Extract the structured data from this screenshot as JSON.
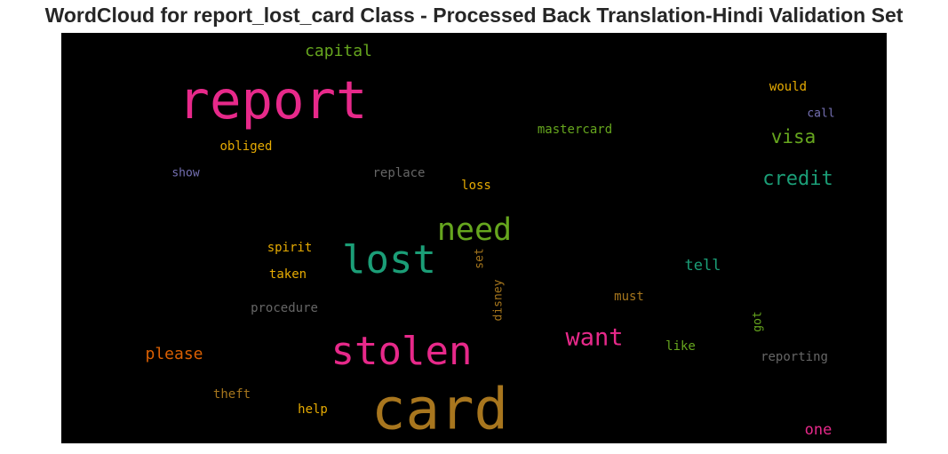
{
  "title": "WordCloud for report_lost_card Class - Processed Back Translation-Hindi Validation Set",
  "chart_data": {
    "type": "wordcloud",
    "background": "#000000",
    "words": [
      {
        "text": "card",
        "weight": 100,
        "color": "#a8761e",
        "rotate": false
      },
      {
        "text": "report",
        "weight": 92,
        "color": "#e7298a",
        "rotate": false
      },
      {
        "text": "lost",
        "weight": 68,
        "color": "#1b9e77",
        "rotate": false
      },
      {
        "text": "stolen",
        "weight": 68,
        "color": "#e7298a",
        "rotate": false
      },
      {
        "text": "need",
        "weight": 54,
        "color": "#66a61e",
        "rotate": false
      },
      {
        "text": "want",
        "weight": 42,
        "color": "#e7298a",
        "rotate": false
      },
      {
        "text": "credit",
        "weight": 35,
        "color": "#1b9e77",
        "rotate": false
      },
      {
        "text": "visa",
        "weight": 33,
        "color": "#66a61e",
        "rotate": false
      },
      {
        "text": "capital",
        "weight": 28,
        "color": "#66a61e",
        "rotate": false
      },
      {
        "text": "please",
        "weight": 28,
        "color": "#d95f02",
        "rotate": false
      },
      {
        "text": "tell",
        "weight": 27,
        "color": "#1b9e77",
        "rotate": false
      },
      {
        "text": "one",
        "weight": 26,
        "color": "#e7298a",
        "rotate": false
      },
      {
        "text": "would",
        "weight": 22,
        "color": "#e6ab02",
        "rotate": false
      },
      {
        "text": "mastercard",
        "weight": 22,
        "color": "#66a61e",
        "rotate": false
      },
      {
        "text": "call",
        "weight": 21,
        "color": "#7570b3",
        "rotate": false
      },
      {
        "text": "obliged",
        "weight": 22,
        "color": "#e6ab02",
        "rotate": false
      },
      {
        "text": "show",
        "weight": 21,
        "color": "#7570b3",
        "rotate": false
      },
      {
        "text": "replace",
        "weight": 22,
        "color": "#666666",
        "rotate": false
      },
      {
        "text": "loss",
        "weight": 22,
        "color": "#e6ab02",
        "rotate": false
      },
      {
        "text": "spirit",
        "weight": 22,
        "color": "#e6ab02",
        "rotate": false
      },
      {
        "text": "taken",
        "weight": 22,
        "color": "#e6ab02",
        "rotate": false
      },
      {
        "text": "procedure",
        "weight": 22,
        "color": "#666666",
        "rotate": false
      },
      {
        "text": "must",
        "weight": 22,
        "color": "#a6761d",
        "rotate": false
      },
      {
        "text": "like",
        "weight": 22,
        "color": "#66a61e",
        "rotate": false
      },
      {
        "text": "reporting",
        "weight": 22,
        "color": "#666666",
        "rotate": false
      },
      {
        "text": "theft",
        "weight": 22,
        "color": "#a6761d",
        "rotate": false
      },
      {
        "text": "help",
        "weight": 22,
        "color": "#e6ab02",
        "rotate": false
      },
      {
        "text": "set",
        "weight": 20,
        "color": "#a6761d",
        "rotate": true
      },
      {
        "text": "disney",
        "weight": 20,
        "color": "#a6761d",
        "rotate": true
      },
      {
        "text": "got",
        "weight": 20,
        "color": "#66a61e",
        "rotate": true
      }
    ]
  }
}
